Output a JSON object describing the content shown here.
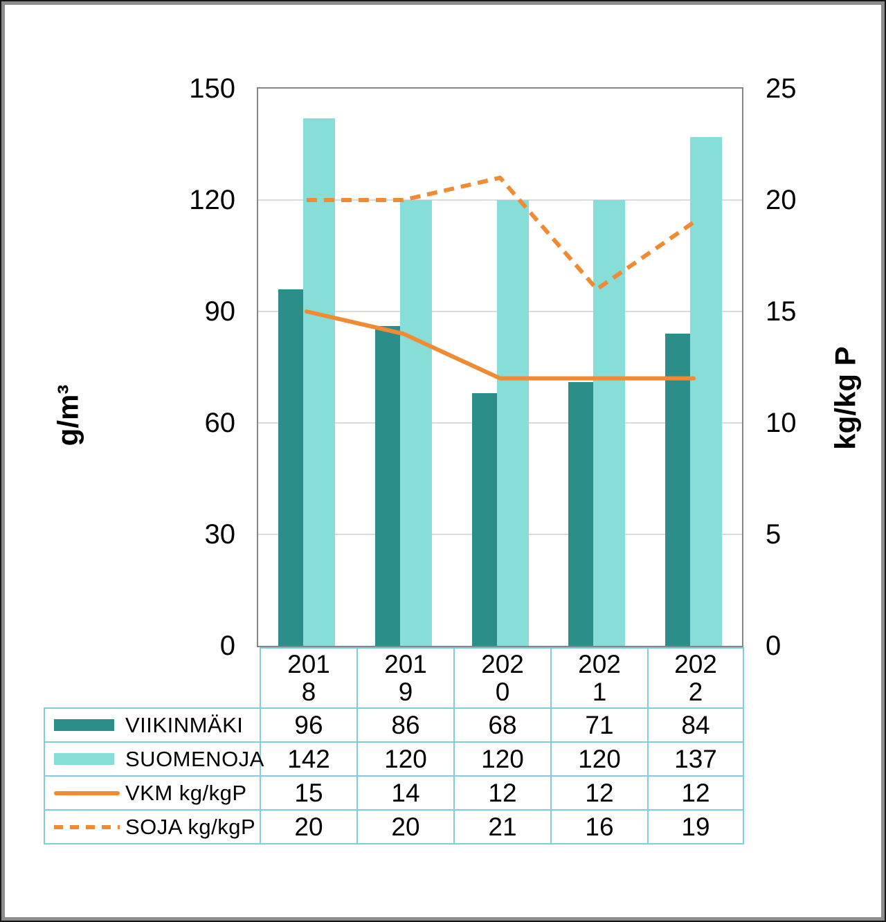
{
  "chart_data": {
    "type": "bar-line-combo",
    "categories": [
      "2018",
      "2019",
      "2020",
      "2021",
      "2022"
    ],
    "category_labels_wrapped": [
      "201\n8",
      "201\n9",
      "202\n0",
      "202\n1",
      "202\n2"
    ],
    "series": [
      {
        "name": "VIIKINMÄKI",
        "type": "bar",
        "style": "solid",
        "axis": "left",
        "color": "#2b8e89",
        "values": [
          96,
          86,
          68,
          71,
          84
        ]
      },
      {
        "name": "SUOMENOJA",
        "type": "bar",
        "style": "solid",
        "axis": "left",
        "color": "#87ddd8",
        "values": [
          142,
          120,
          120,
          120,
          137
        ]
      },
      {
        "name": "VKM kg/kgP",
        "type": "line",
        "style": "solid",
        "axis": "right",
        "color": "#f08a33",
        "values": [
          15,
          14,
          12,
          12,
          12
        ]
      },
      {
        "name": "SOJA kg/kgP",
        "type": "line",
        "style": "dashed",
        "axis": "right",
        "color": "#f08a33",
        "values": [
          20,
          20,
          21,
          16,
          19
        ]
      }
    ],
    "title": "",
    "xlabel": "",
    "ylabel_left": "g/m³",
    "ylabel_right": "kg/kg P",
    "y_left": {
      "min": 0,
      "max": 150,
      "ticks": [
        150,
        120,
        90,
        60,
        30,
        0
      ]
    },
    "y_right": {
      "min": 0,
      "max": 25,
      "ticks": [
        25,
        20,
        15,
        10,
        5,
        0
      ]
    },
    "grid": true,
    "legend_position": "table-left-column"
  },
  "colors": {
    "viikinmaki_bar": "#2b8e89",
    "suomenoja_bar": "#87ddd8",
    "line_orange": "#f08a33",
    "gridline": "#dadada",
    "plot_frame": "#858585",
    "table_border": "#7fccda",
    "outer_border_gray": "#8c8c8c",
    "outer_border_black": "#161616",
    "text": "#000000"
  }
}
